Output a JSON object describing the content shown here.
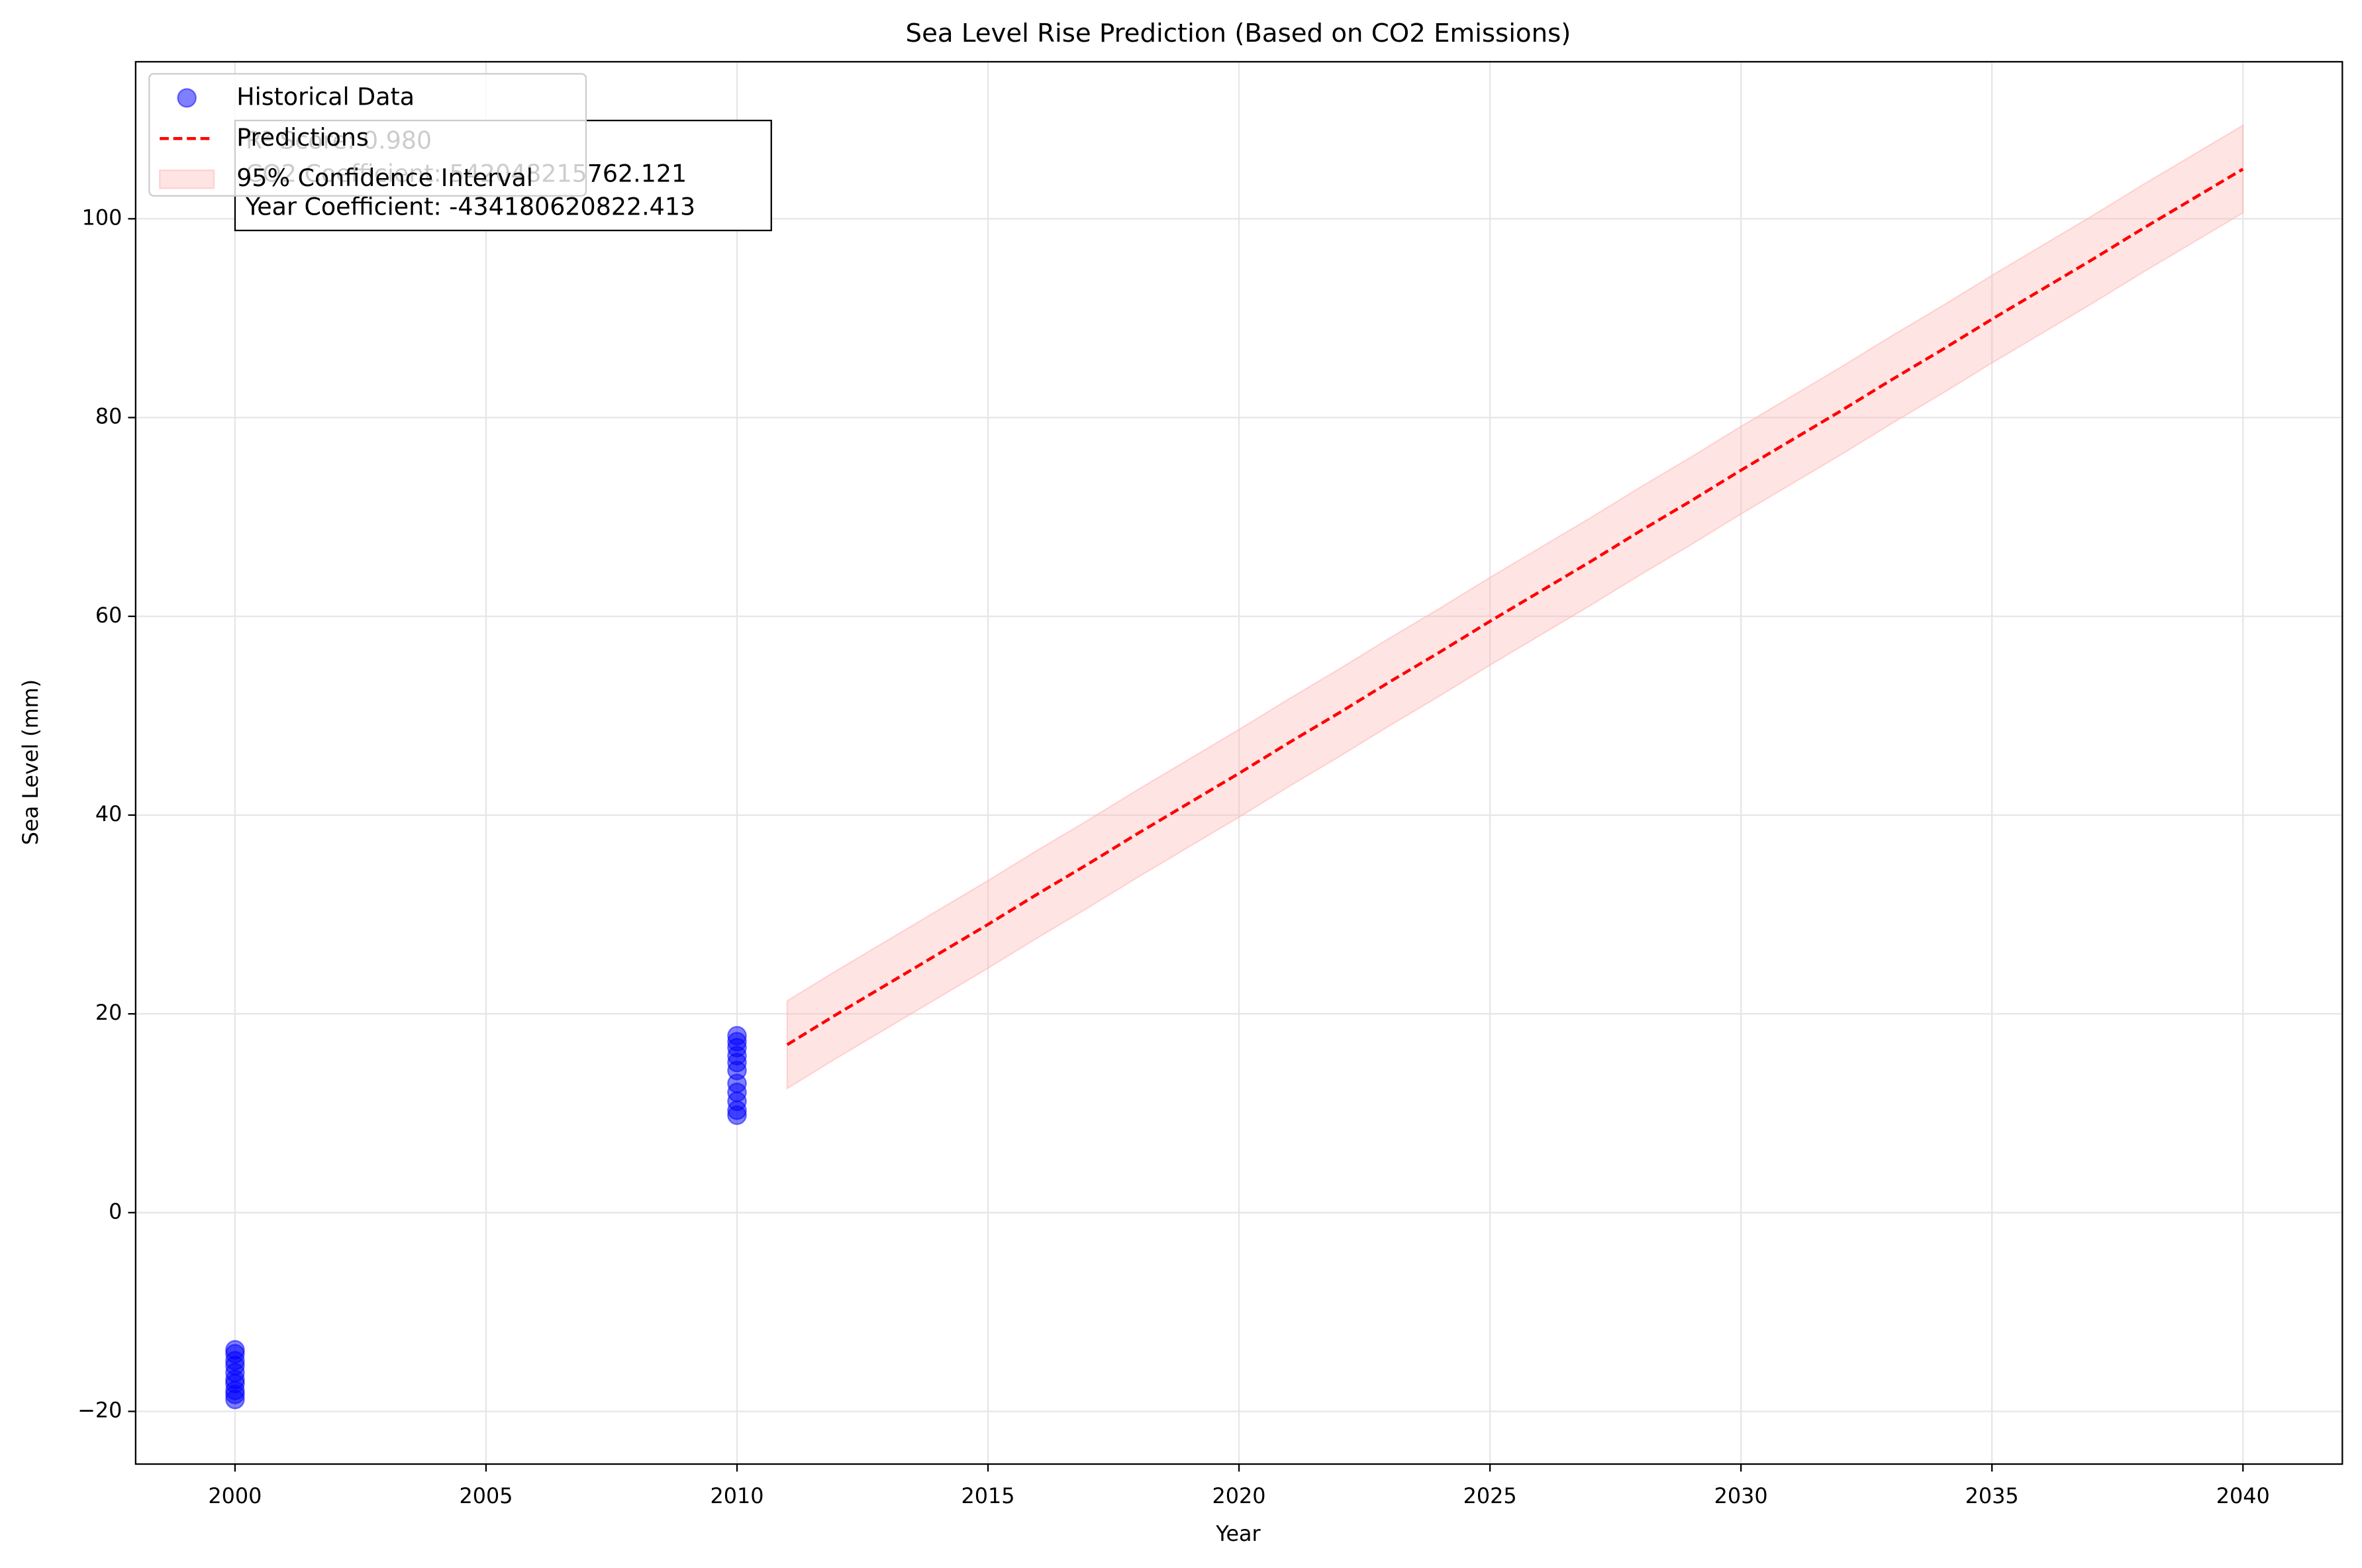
{
  "chart_data": {
    "type": "line",
    "title": "Sea Level Rise Prediction (Based on CO2 Emissions)",
    "xlabel": "Year",
    "ylabel": "Sea Level (mm)",
    "xlim": [
      1998.02,
      2041.98
    ],
    "ylim": [
      -25.3,
      115.8
    ],
    "xticks": [
      2000,
      2005,
      2010,
      2015,
      2020,
      2025,
      2030,
      2035,
      2040
    ],
    "yticks": [
      {
        "value": -20,
        "label": "−20"
      },
      0,
      20,
      40,
      60,
      80,
      100
    ],
    "grid": true,
    "legend": "upper left",
    "annotation": [
      "R² Score: 0.980",
      "CO2 Coefficient: 542048215762.121",
      "Year Coefficient: -434180620822.413"
    ],
    "series": [
      {
        "type": "scatter",
        "name": "Historical Data",
        "color": "#0000ff",
        "x": [
          2000,
          2000,
          2000,
          2000,
          2000,
          2000,
          2000,
          2000,
          2000,
          2000,
          2010,
          2010,
          2010,
          2010,
          2010,
          2010,
          2010,
          2010,
          2010,
          2010,
          2010
        ],
        "values": [
          -18.8,
          -18.3,
          -17.9,
          -17.2,
          -16.8,
          -16.1,
          -15.4,
          -14.9,
          -14.2,
          -13.8,
          9.8,
          10.3,
          11.2,
          12.1,
          13.0,
          14.3,
          15.1,
          15.8,
          16.6,
          17.2,
          17.8
        ]
      },
      {
        "type": "line",
        "name": "Predictions",
        "color": "#ff0000",
        "x": [
          2011,
          2012,
          2013,
          2014,
          2015,
          2016,
          2017,
          2018,
          2019,
          2020,
          2021,
          2022,
          2023,
          2024,
          2025,
          2026,
          2027,
          2028,
          2029,
          2030,
          2031,
          2032,
          2033,
          2034,
          2035,
          2036,
          2037,
          2038,
          2039,
          2040
        ],
        "values": [
          16.9,
          20.0,
          23.0,
          26.0,
          29.0,
          32.1,
          35.1,
          38.2,
          41.2,
          44.2,
          47.3,
          50.3,
          53.4,
          56.4,
          59.5,
          62.5,
          65.5,
          68.6,
          71.6,
          74.7,
          77.7,
          80.7,
          83.8,
          86.8,
          89.9,
          92.9,
          95.9,
          99.0,
          102.0,
          105.0
        ]
      },
      {
        "type": "band",
        "name": "95% Confidence Interval",
        "color": "#ffb3b3",
        "x": [
          2011,
          2012,
          2013,
          2014,
          2015,
          2016,
          2017,
          2018,
          2019,
          2020,
          2021,
          2022,
          2023,
          2024,
          2025,
          2026,
          2027,
          2028,
          2029,
          2030,
          2031,
          2032,
          2033,
          2034,
          2035,
          2036,
          2037,
          2038,
          2039,
          2040
        ],
        "lower": [
          12.5,
          15.6,
          18.6,
          21.6,
          24.6,
          27.7,
          30.7,
          33.8,
          36.8,
          39.8,
          42.9,
          45.9,
          49.0,
          52.0,
          55.1,
          58.1,
          61.1,
          64.2,
          67.2,
          70.3,
          73.3,
          76.3,
          79.4,
          82.4,
          85.5,
          88.5,
          91.5,
          94.6,
          97.6,
          100.6
        ],
        "upper": [
          21.3,
          24.4,
          27.4,
          30.4,
          33.4,
          36.5,
          39.5,
          42.6,
          45.6,
          48.6,
          51.7,
          54.7,
          57.8,
          60.8,
          63.9,
          66.9,
          69.9,
          73.0,
          76.0,
          79.1,
          82.1,
          85.1,
          88.2,
          91.2,
          94.3,
          97.3,
          100.3,
          103.4,
          106.4,
          109.4
        ]
      }
    ]
  }
}
